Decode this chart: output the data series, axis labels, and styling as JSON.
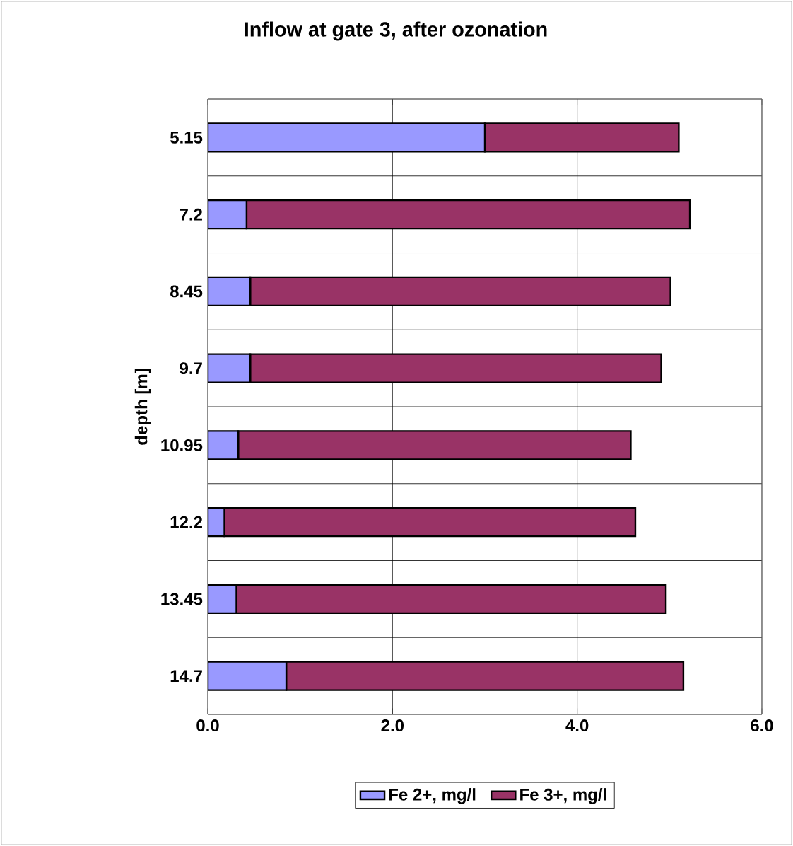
{
  "chart_data": {
    "type": "bar",
    "orientation": "horizontal",
    "stacked": true,
    "title": "Inflow at gate 3, after ozonation",
    "ylabel": "depth [m]",
    "categories": [
      "5.15",
      "7.2",
      "8.45",
      "9.7",
      "10.95",
      "12.2",
      "13.45",
      "14.7"
    ],
    "series": [
      {
        "name": "Fe 2+, mg/l",
        "color": "#9999ff",
        "values": [
          3.0,
          0.42,
          0.46,
          0.46,
          0.33,
          0.18,
          0.31,
          0.85
        ]
      },
      {
        "name": "Fe 3+, mg/l",
        "color": "#993366",
        "values": [
          2.1,
          4.8,
          4.55,
          4.45,
          4.25,
          4.45,
          4.65,
          4.3
        ]
      }
    ],
    "xlim": [
      0,
      6
    ],
    "xticks": [
      {
        "value": 0,
        "label": "0.0"
      },
      {
        "value": 2,
        "label": "2.0"
      },
      {
        "value": 4,
        "label": "4.0"
      },
      {
        "value": 6,
        "label": "6.0"
      }
    ],
    "grid": true,
    "legend": "bottom"
  }
}
